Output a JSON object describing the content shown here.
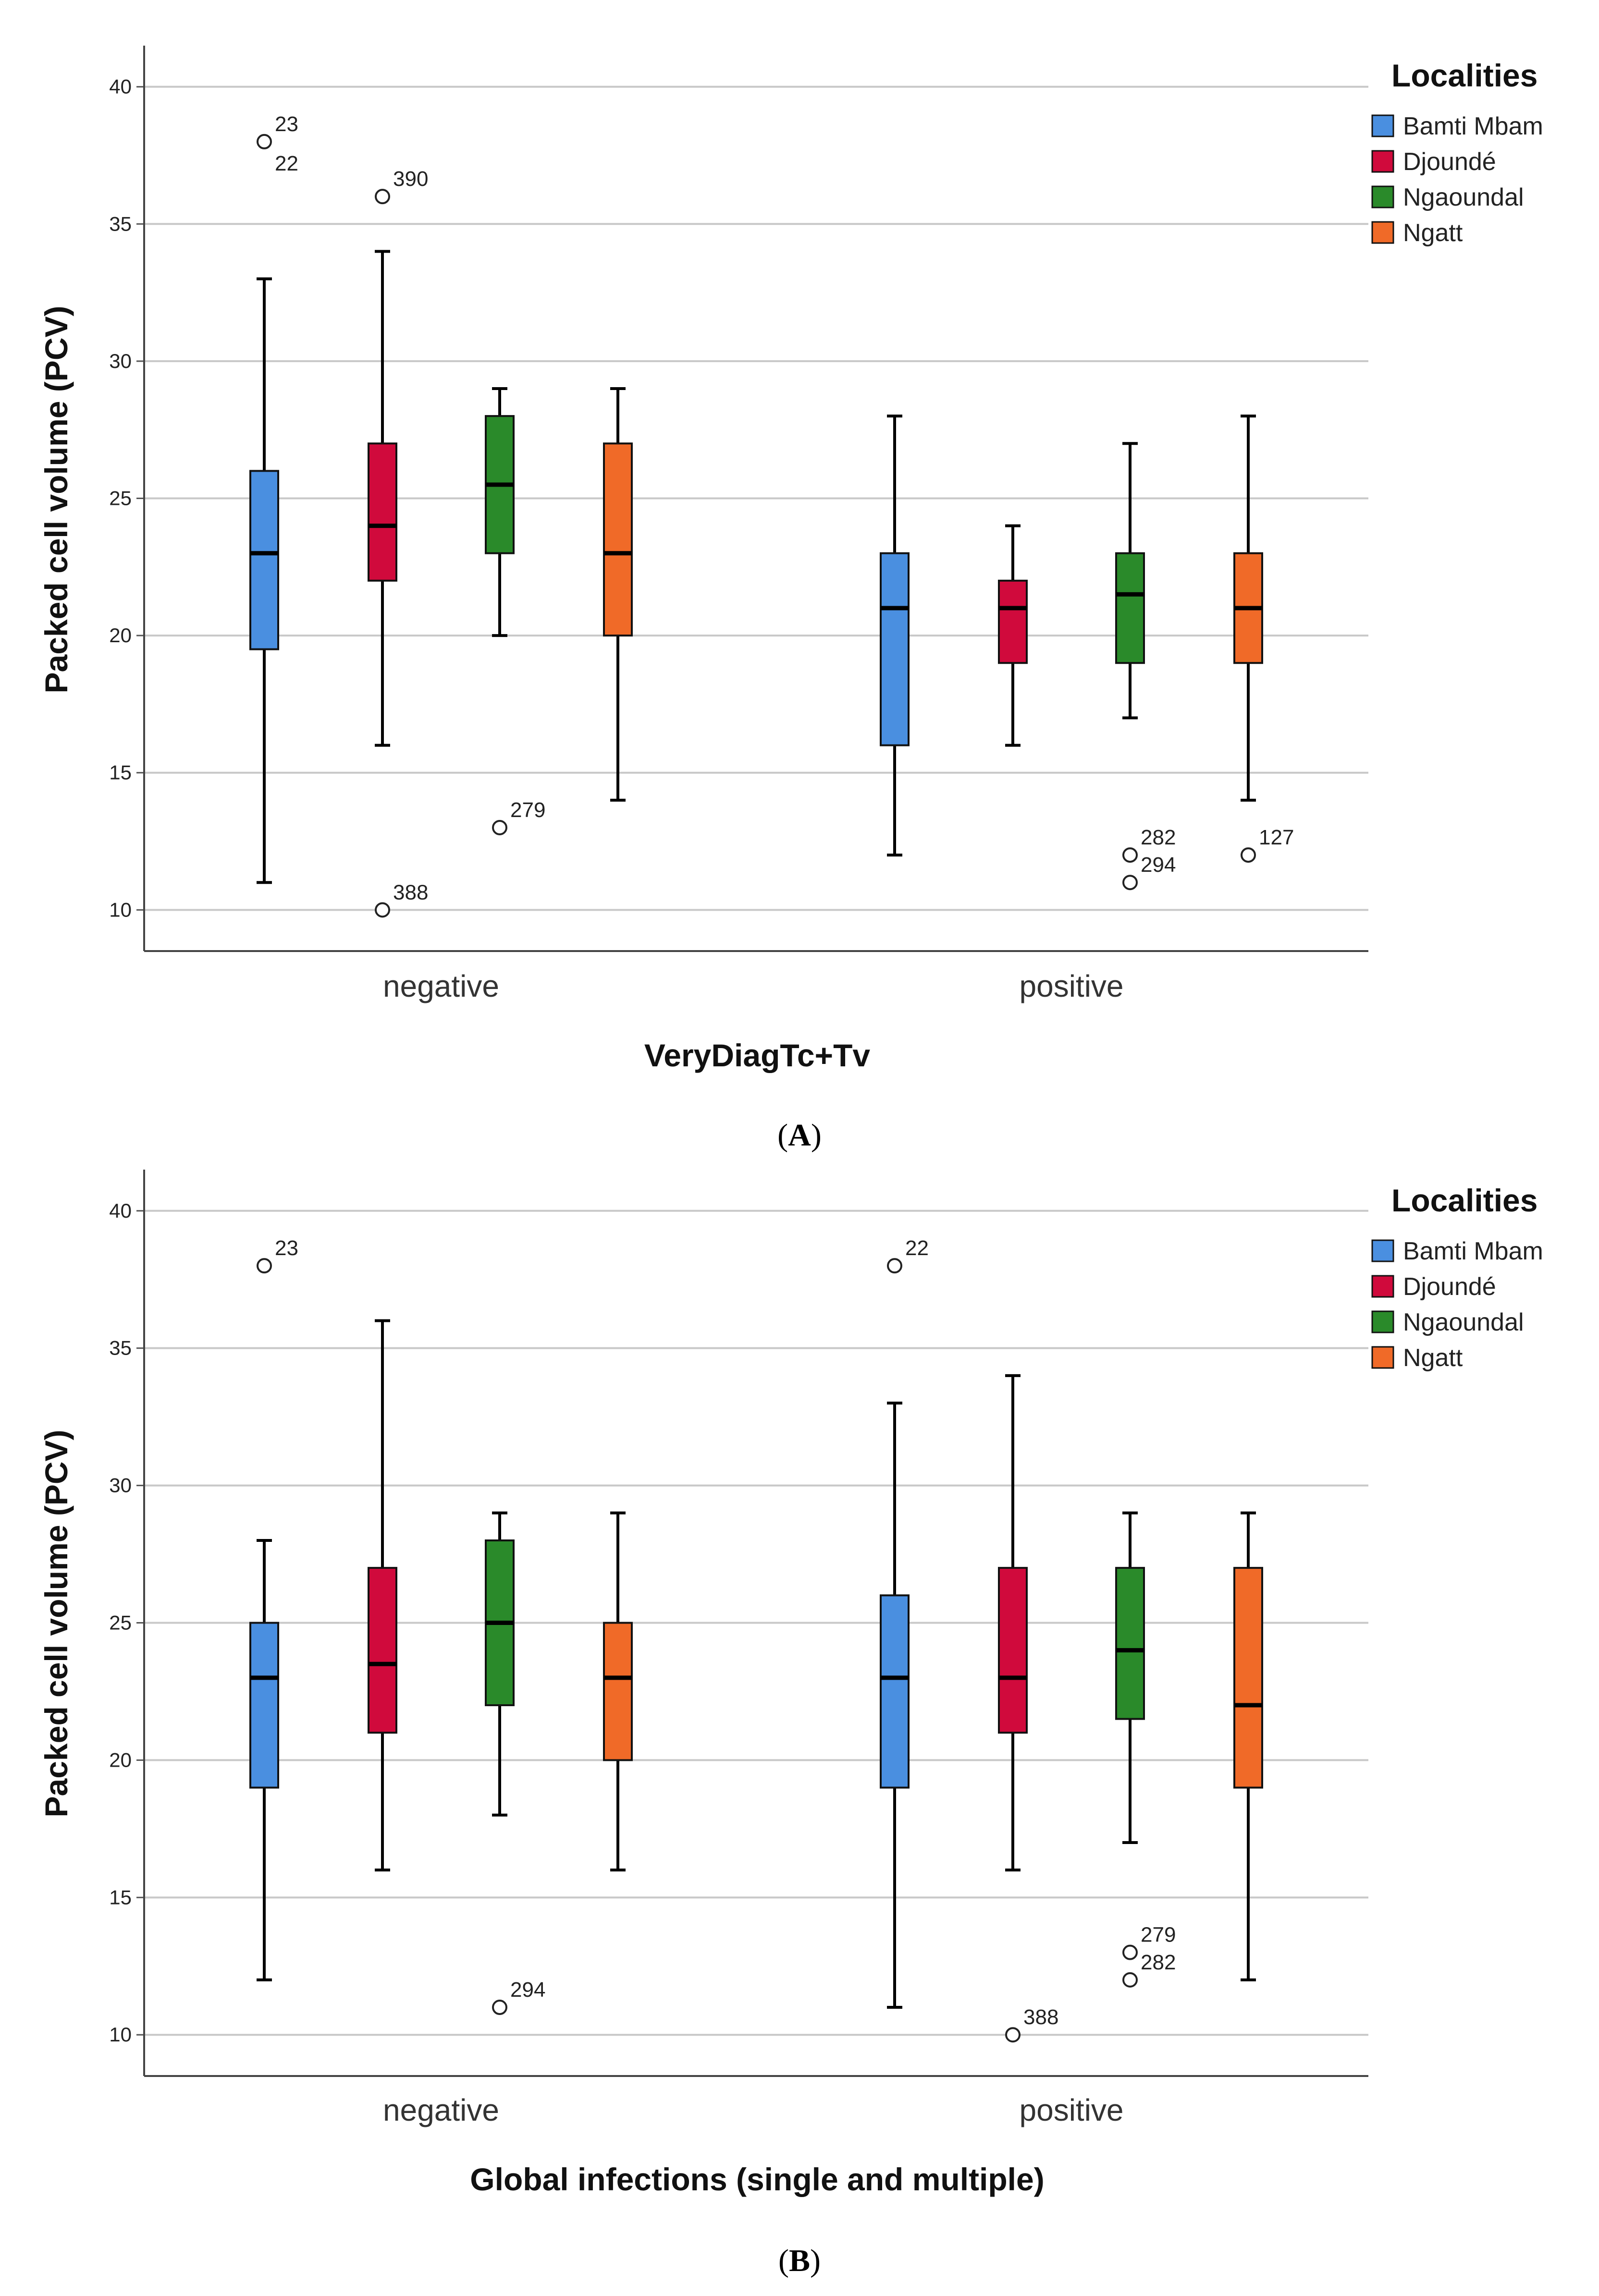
{
  "chart_data": [
    {
      "type": "boxplot",
      "panel": "A",
      "xlabel": "VeryDiagTc+Tv",
      "ylabel": "Packed cell volume (PCV)",
      "ylim": [
        8.5,
        41.5
      ],
      "yticks": [
        10,
        15,
        20,
        25,
        30,
        35,
        40
      ],
      "grid": true,
      "legend": {
        "title": "Localities",
        "position": "top-right"
      },
      "categories": [
        "negative",
        "positive"
      ],
      "series": [
        {
          "name": "Bamti Mbam",
          "color": "#4a8fe0",
          "boxes": [
            {
              "whisker_low": 11,
              "q1": 19.5,
              "median": 23,
              "q3": 26,
              "whisker_high": 33,
              "outliers": [
                {
                  "value": 38,
                  "label": "23"
                },
                {
                  "value": 38,
                  "label": "22"
                }
              ]
            },
            {
              "whisker_low": 12,
              "q1": 16,
              "median": 21,
              "q3": 23,
              "whisker_high": 28,
              "outliers": []
            }
          ]
        },
        {
          "name": "Djoundé",
          "color": "#d00a3c",
          "boxes": [
            {
              "whisker_low": 16,
              "q1": 22,
              "median": 24,
              "q3": 27,
              "whisker_high": 34,
              "outliers": [
                {
                  "value": 36,
                  "label": "390"
                },
                {
                  "value": 10,
                  "label": "388"
                }
              ]
            },
            {
              "whisker_low": 16,
              "q1": 19,
              "median": 21,
              "q3": 22,
              "whisker_high": 24,
              "outliers": []
            }
          ]
        },
        {
          "name": "Ngaoundal",
          "color": "#2a8a2a",
          "boxes": [
            {
              "whisker_low": 20,
              "q1": 23,
              "median": 25.5,
              "q3": 28,
              "whisker_high": 29,
              "outliers": [
                {
                  "value": 13,
                  "label": "279"
                }
              ]
            },
            {
              "whisker_low": 17,
              "q1": 19,
              "median": 21.5,
              "q3": 23,
              "whisker_high": 27,
              "outliers": [
                {
                  "value": 12,
                  "label": "282"
                },
                {
                  "value": 11,
                  "label": "294"
                }
              ]
            }
          ]
        },
        {
          "name": "Ngatt",
          "color": "#f06a28",
          "boxes": [
            {
              "whisker_low": 14,
              "q1": 20,
              "median": 23,
              "q3": 27,
              "whisker_high": 29,
              "outliers": []
            },
            {
              "whisker_low": 14,
              "q1": 19,
              "median": 21,
              "q3": 23,
              "whisker_high": 28,
              "outliers": [
                {
                  "value": 12,
                  "label": "127"
                }
              ]
            }
          ]
        }
      ]
    },
    {
      "type": "boxplot",
      "panel": "B",
      "xlabel": "Global infections (single and multiple)",
      "ylabel": "Packed cell volume (PCV)",
      "ylim": [
        8.5,
        41.5
      ],
      "yticks": [
        10,
        15,
        20,
        25,
        30,
        35,
        40
      ],
      "grid": true,
      "legend": {
        "title": "Localities",
        "position": "top-right"
      },
      "categories": [
        "negative",
        "positive"
      ],
      "series": [
        {
          "name": "Bamti Mbam",
          "color": "#4a8fe0",
          "boxes": [
            {
              "whisker_low": 12,
              "q1": 19,
              "median": 23,
              "q3": 25,
              "whisker_high": 28,
              "outliers": [
                {
                  "value": 38,
                  "label": "23"
                }
              ]
            },
            {
              "whisker_low": 11,
              "q1": 19,
              "median": 23,
              "q3": 26,
              "whisker_high": 33,
              "outliers": [
                {
                  "value": 38,
                  "label": "22"
                }
              ]
            }
          ]
        },
        {
          "name": "Djoundé",
          "color": "#d00a3c",
          "boxes": [
            {
              "whisker_low": 16,
              "q1": 21,
              "median": 23.5,
              "q3": 27,
              "whisker_high": 36,
              "outliers": []
            },
            {
              "whisker_low": 16,
              "q1": 21,
              "median": 23,
              "q3": 27,
              "whisker_high": 34,
              "outliers": [
                {
                  "value": 10,
                  "label": "388"
                }
              ]
            }
          ]
        },
        {
          "name": "Ngaoundal",
          "color": "#2a8a2a",
          "boxes": [
            {
              "whisker_low": 18,
              "q1": 22,
              "median": 25,
              "q3": 28,
              "whisker_high": 29,
              "outliers": [
                {
                  "value": 11,
                  "label": "294"
                }
              ]
            },
            {
              "whisker_low": 17,
              "q1": 21.5,
              "median": 24,
              "q3": 27,
              "whisker_high": 29,
              "outliers": [
                {
                  "value": 13,
                  "label": "279"
                },
                {
                  "value": 12,
                  "label": "282"
                }
              ]
            }
          ]
        },
        {
          "name": "Ngatt",
          "color": "#f06a28",
          "boxes": [
            {
              "whisker_low": 16,
              "q1": 20,
              "median": 23,
              "q3": 25,
              "whisker_high": 29,
              "outliers": []
            },
            {
              "whisker_low": 12,
              "q1": 19,
              "median": 22,
              "q3": 27,
              "whisker_high": 29,
              "outliers": []
            }
          ]
        }
      ]
    }
  ],
  "captions": [
    {
      "open": "(",
      "letter": "A",
      "close": ")"
    },
    {
      "open": "(",
      "letter": "B",
      "close": ")"
    }
  ]
}
